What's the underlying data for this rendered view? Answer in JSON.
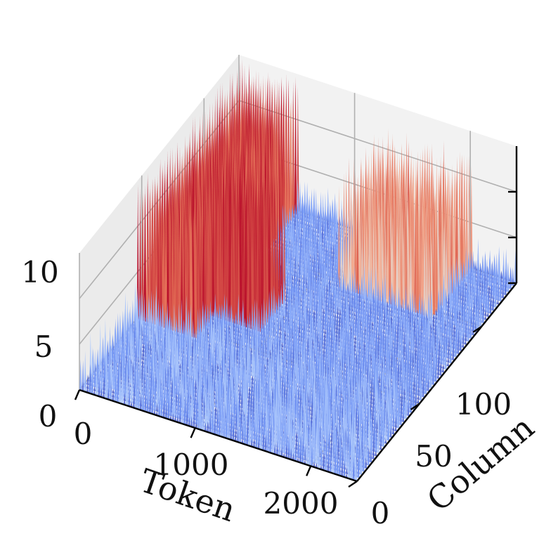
{
  "chart_data": {
    "type": "surface",
    "xlabel": "Token",
    "ylabel": "Column",
    "zlabel": "",
    "x_ticks": [
      "0",
      "1000",
      "2000"
    ],
    "y_ticks": [
      "0",
      "50",
      "100"
    ],
    "z_ticks": [
      "0",
      "5",
      "10"
    ],
    "xlim": [
      0,
      2400
    ],
    "ylim": [
      0,
      128
    ],
    "zlim": [
      0,
      15
    ],
    "grid": true,
    "colormap": "coolwarm",
    "colormap_stops": [
      "#3b4cc0",
      "#7396f5",
      "#b0cbfc",
      "#dddcdc",
      "#f6b194",
      "#e36c55",
      "#b40426"
    ],
    "regions": [
      {
        "columns": [
          0,
          45
        ],
        "tokens": [
          0,
          2400
        ],
        "height_range": [
          0.5,
          5
        ]
      },
      {
        "columns": [
          45,
          128
        ],
        "tokens": [
          0,
          2400
        ],
        "height_range": [
          0.5,
          4
        ]
      },
      {
        "columns": [
          45,
          128
        ],
        "tokens": [
          0,
          500
        ],
        "height_range": [
          12,
          15
        ]
      },
      {
        "columns": [
          60,
          80
        ],
        "tokens": [
          400,
          900
        ],
        "height_range": [
          13,
          15
        ]
      },
      {
        "columns": [
          95,
          128
        ],
        "tokens": [
          1200,
          2000
        ],
        "height_range": [
          8,
          13
        ]
      }
    ]
  }
}
